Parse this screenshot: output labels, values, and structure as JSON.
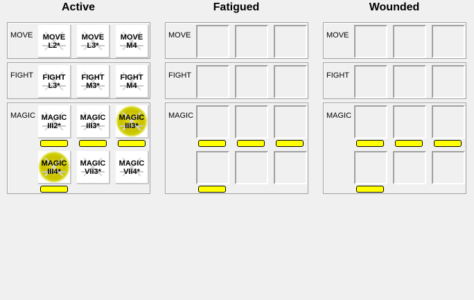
{
  "columns": [
    {
      "title": "Active",
      "groups": [
        {
          "label": "MOVE",
          "cells": [
            {
              "l1": "MOVE",
              "l2": "L2*"
            },
            {
              "l1": "MOVE",
              "l2": "L3*"
            },
            {
              "l1": "MOVE",
              "l2": "M4"
            }
          ]
        },
        {
          "label": "FIGHT",
          "cells": [
            {
              "l1": "FIGHT",
              "l2": "L3*"
            },
            {
              "l1": "FIGHT",
              "l2": "M3*"
            },
            {
              "l1": "FIGHT",
              "l2": "M4"
            }
          ]
        },
        {
          "label": "MAGIC",
          "cells": [
            {
              "l1": "MAGIC",
              "l2": "III2*",
              "bar": true
            },
            {
              "l1": "MAGIC",
              "l2": "III3*",
              "bar": true
            },
            {
              "l1": "MAGIC",
              "l2": "III3*",
              "bar": true,
              "enchanted": true
            },
            {
              "l1": "MAGIC",
              "l2": "III4*",
              "bar": true,
              "enchanted": true
            },
            {
              "l1": "MAGIC",
              "l2": "VII3*"
            },
            {
              "l1": "MAGIC",
              "l2": "VII4*"
            }
          ]
        }
      ]
    },
    {
      "title": "Fatigued",
      "groups": [
        {
          "label": "MOVE",
          "cells": [
            {},
            {},
            {}
          ]
        },
        {
          "label": "FIGHT",
          "cells": [
            {},
            {},
            {}
          ]
        },
        {
          "label": "MAGIC",
          "cells": [
            {
              "bar": true
            },
            {
              "bar": true
            },
            {
              "bar": true
            },
            {
              "bar": true
            },
            {},
            {}
          ]
        }
      ]
    },
    {
      "title": "Wounded",
      "groups": [
        {
          "label": "MOVE",
          "cells": [
            {},
            {},
            {}
          ]
        },
        {
          "label": "FIGHT",
          "cells": [
            {},
            {},
            {}
          ]
        },
        {
          "label": "MAGIC",
          "cells": [
            {
              "bar": true
            },
            {
              "bar": true
            },
            {
              "bar": true
            },
            {
              "bar": true
            },
            {},
            {}
          ]
        }
      ]
    }
  ],
  "colors": {
    "bar": "#ffff00",
    "enchanted": "#c8c000"
  }
}
